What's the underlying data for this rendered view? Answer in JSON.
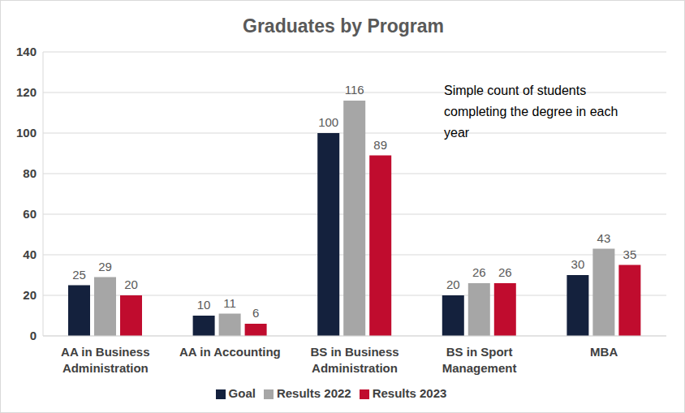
{
  "chart_data": {
    "type": "bar",
    "title": "Graduates by Program",
    "annotation": "Simple count of students completing the degree in each year",
    "categories": [
      "AA in Business Administration",
      "AA in Accounting",
      "BS in Business Administration",
      "BS in Sport Management",
      "MBA"
    ],
    "series": [
      {
        "name": "Goal",
        "color": "#14213d",
        "values": [
          25,
          10,
          100,
          20,
          30
        ]
      },
      {
        "name": "Results 2022",
        "color": "#a6a6a6",
        "values": [
          29,
          11,
          116,
          26,
          43
        ]
      },
      {
        "name": "Results 2023",
        "color": "#c00c2e",
        "values": [
          20,
          6,
          89,
          26,
          35
        ]
      }
    ],
    "ylim": [
      0,
      140
    ],
    "yticks": [
      0,
      20,
      40,
      60,
      80,
      100,
      120,
      140
    ],
    "grid": true,
    "legend": "bottom",
    "data_labels": true
  }
}
